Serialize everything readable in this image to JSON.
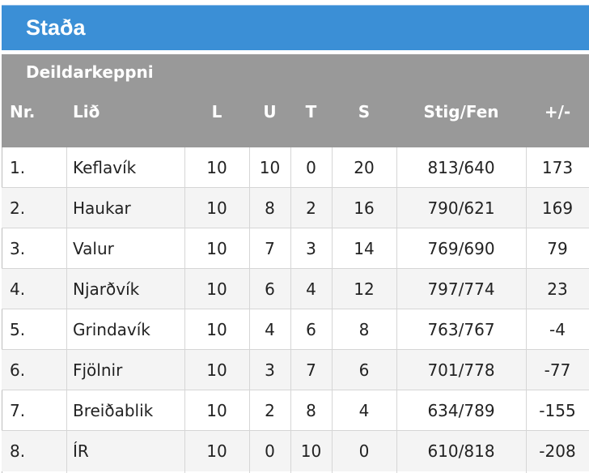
{
  "header": {
    "title": "Staða",
    "section_label": "Deildarkeppni"
  },
  "columns": {
    "nr": "Nr.",
    "lid": "Lið",
    "l": "L",
    "u": "U",
    "t": "T",
    "s": "S",
    "stig": "Stig/Fen",
    "pm": "+/-"
  },
  "rows": [
    {
      "nr": "1.",
      "lid": "Keflavík",
      "l": "10",
      "u": "10",
      "t": "0",
      "s": "20",
      "stig": "813/640",
      "pm": "173"
    },
    {
      "nr": "2.",
      "lid": "Haukar",
      "l": "10",
      "u": "8",
      "t": "2",
      "s": "16",
      "stig": "790/621",
      "pm": "169"
    },
    {
      "nr": "3.",
      "lid": "Valur",
      "l": "10",
      "u": "7",
      "t": "3",
      "s": "14",
      "stig": "769/690",
      "pm": "79"
    },
    {
      "nr": "4.",
      "lid": "Njarðvík",
      "l": "10",
      "u": "6",
      "t": "4",
      "s": "12",
      "stig": "797/774",
      "pm": "23"
    },
    {
      "nr": "5.",
      "lid": "Grindavík",
      "l": "10",
      "u": "4",
      "t": "6",
      "s": "8",
      "stig": "763/767",
      "pm": "-4"
    },
    {
      "nr": "6.",
      "lid": "Fjölnir",
      "l": "10",
      "u": "3",
      "t": "7",
      "s": "6",
      "stig": "701/778",
      "pm": "-77"
    },
    {
      "nr": "7.",
      "lid": "Breiðablik",
      "l": "10",
      "u": "2",
      "t": "8",
      "s": "4",
      "stig": "634/789",
      "pm": "-155"
    },
    {
      "nr": "8.",
      "lid": "ÍR",
      "l": "10",
      "u": "0",
      "t": "10",
      "s": "0",
      "stig": "610/818",
      "pm": "-208"
    }
  ],
  "colors": {
    "title_bar": "#3b8fd6",
    "header_bg": "#999999",
    "row_alt": "#f4f4f4",
    "grid": "#d6d6d6"
  }
}
